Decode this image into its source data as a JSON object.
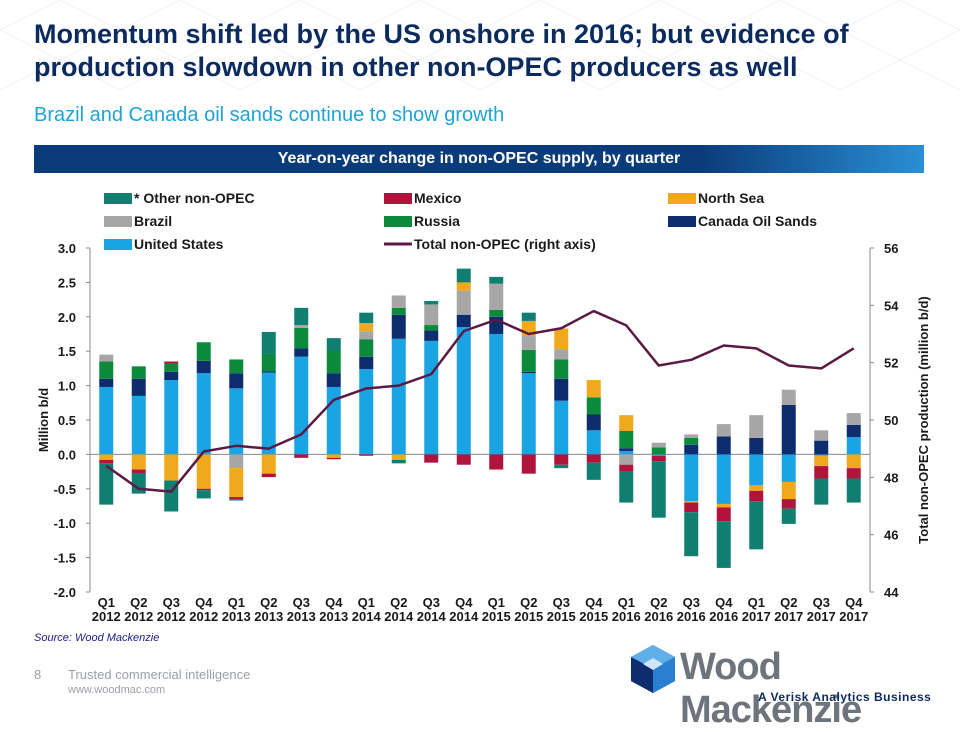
{
  "header": {
    "title": "Momentum shift led by the US onshore in 2016; but evidence of production slowdown in other non-OPEC producers as well",
    "subtitle": "Brazil and Canada oil sands continue to show growth",
    "banner": "Year-on-year change in non-OPEC supply, by quarter"
  },
  "footer": {
    "source": "Source: Wood Mackenzie",
    "page_number": "8",
    "tagline": "Trusted commercial intelligence",
    "url": "www.woodmac.com",
    "logo_word": "Wood Mackenzie",
    "logo_tag": "A Verisk Analytics Business"
  },
  "colors": {
    "navy": "#0b2a5e",
    "banner": "#0b3c7a",
    "subtitle": "#1ba4dc"
  },
  "chart_data": {
    "type": "bar",
    "stacked": true,
    "categories": [
      "Q1 2012",
      "Q2 2012",
      "Q3 2012",
      "Q4 2012",
      "Q1 2013",
      "Q2 2013",
      "Q3 2013",
      "Q4 2013",
      "Q1 2014",
      "Q2 2014",
      "Q3 2014",
      "Q4 2014",
      "Q1 2015",
      "Q2 2015",
      "Q3 2015",
      "Q4 2015",
      "Q1 2016",
      "Q2 2016",
      "Q3 2016",
      "Q4 2016",
      "Q1 2017",
      "Q2 2017",
      "Q3 2017",
      "Q4 2017"
    ],
    "category_lines": [
      [
        "Q1",
        "2012"
      ],
      [
        "Q2",
        "2012"
      ],
      [
        "Q3",
        "2012"
      ],
      [
        "Q4",
        "2012"
      ],
      [
        "Q1",
        "2013"
      ],
      [
        "Q2",
        "2013"
      ],
      [
        "Q3",
        "2013"
      ],
      [
        "Q4",
        "2013"
      ],
      [
        "Q1",
        "2014"
      ],
      [
        "Q2",
        "2014"
      ],
      [
        "Q3",
        "2014"
      ],
      [
        "Q4",
        "2014"
      ],
      [
        "Q1",
        "2015"
      ],
      [
        "Q2",
        "2015"
      ],
      [
        "Q3",
        "2015"
      ],
      [
        "Q4",
        "2015"
      ],
      [
        "Q1",
        "2016"
      ],
      [
        "Q2",
        "2016"
      ],
      [
        "Q3",
        "2016"
      ],
      [
        "Q4",
        "2016"
      ],
      [
        "Q1",
        "2017"
      ],
      [
        "Q2",
        "2017"
      ],
      [
        "Q3",
        "2017"
      ],
      [
        "Q4",
        "2017"
      ]
    ],
    "series": [
      {
        "name": "United States",
        "color": "#1ba4e4",
        "values": [
          0.98,
          0.85,
          1.08,
          1.18,
          0.96,
          1.19,
          1.42,
          0.98,
          1.24,
          1.68,
          1.65,
          1.85,
          1.75,
          1.18,
          0.78,
          0.35,
          0.05,
          -0.02,
          -0.68,
          -0.72,
          -0.45,
          -0.4,
          -0.02,
          0.25
        ]
      },
      {
        "name": "Canada Oil Sands",
        "color": "#0e2d6e",
        "values": [
          0.12,
          0.25,
          0.12,
          0.18,
          0.22,
          0.02,
          0.12,
          0.2,
          0.18,
          0.35,
          0.15,
          0.18,
          0.25,
          0.02,
          0.32,
          0.23,
          0.04,
          0.0,
          0.14,
          0.26,
          0.24,
          0.72,
          0.2,
          0.18
        ]
      },
      {
        "name": "Russia",
        "color": "#0b8a3c",
        "values": [
          0.25,
          0.18,
          0.12,
          0.27,
          0.2,
          0.25,
          0.3,
          0.33,
          0.25,
          0.1,
          0.08,
          0.0,
          0.1,
          0.32,
          0.28,
          0.25,
          0.25,
          0.1,
          0.1,
          0.0,
          0.0,
          0.0,
          0.0,
          0.0
        ]
      },
      {
        "name": "Brazil",
        "color": "#a6a6a6",
        "values": [
          0.1,
          0.0,
          0.0,
          0.0,
          -0.2,
          0.0,
          0.04,
          0.0,
          0.12,
          0.18,
          0.3,
          0.35,
          0.38,
          0.2,
          0.15,
          0.0,
          -0.15,
          0.07,
          0.05,
          0.18,
          0.33,
          0.22,
          0.15,
          0.17
        ]
      },
      {
        "name": "North Sea",
        "color": "#f0a81c",
        "values": [
          -0.08,
          -0.22,
          -0.38,
          -0.5,
          -0.42,
          -0.28,
          0.0,
          -0.05,
          0.12,
          -0.08,
          0.0,
          0.12,
          0.0,
          0.22,
          0.3,
          0.25,
          0.23,
          0.0,
          -0.02,
          -0.05,
          -0.08,
          -0.25,
          -0.15,
          -0.2
        ]
      },
      {
        "name": "Mexico",
        "color": "#b0143c",
        "values": [
          -0.05,
          -0.05,
          0.03,
          -0.02,
          -0.03,
          -0.05,
          -0.05,
          -0.02,
          -0.02,
          0.0,
          -0.12,
          -0.15,
          -0.22,
          -0.28,
          -0.15,
          -0.12,
          -0.1,
          -0.08,
          -0.14,
          -0.2,
          -0.15,
          -0.14,
          -0.18,
          -0.15
        ]
      },
      {
        "name": "* Other non-OPEC",
        "color": "#117e72",
        "values": [
          -0.6,
          -0.3,
          -0.45,
          -0.12,
          -0.02,
          0.32,
          0.25,
          0.18,
          0.15,
          -0.05,
          0.05,
          0.2,
          0.1,
          0.12,
          -0.05,
          -0.25,
          -0.45,
          -0.82,
          -0.64,
          -0.68,
          -0.7,
          -0.22,
          -0.38,
          -0.35
        ]
      }
    ],
    "legend_order": [
      "* Other non-OPEC",
      "Mexico",
      "North Sea",
      "Brazil",
      "Russia",
      "Canada Oil Sands",
      "United States",
      "Total non-OPEC (right axis)"
    ],
    "line": {
      "name": "Total non-OPEC (right axis)",
      "color": "#5a1a44",
      "axis": "right",
      "values": [
        48.4,
        47.6,
        47.5,
        48.9,
        49.1,
        49.0,
        49.5,
        50.7,
        51.1,
        51.2,
        51.6,
        53.1,
        53.5,
        53.0,
        53.2,
        53.8,
        53.3,
        51.9,
        52.1,
        52.6,
        52.5,
        51.9,
        51.8,
        52.5
      ]
    },
    "ylabel": "Million b/d",
    "ylabel_right": "Total non-OPEC production (million b/d)",
    "ylim": [
      -2.0,
      3.0
    ],
    "yticks": [
      "3.0",
      "2.5",
      "2.0",
      "1.5",
      "1.0",
      "0.5",
      "0.0",
      "-0.5",
      "-1.0",
      "-1.5",
      "-2.0"
    ],
    "ylim_right": [
      44,
      56
    ],
    "yticks_right": [
      "56",
      "54",
      "52",
      "50",
      "48",
      "46",
      "44"
    ],
    "legend_position": "top"
  }
}
